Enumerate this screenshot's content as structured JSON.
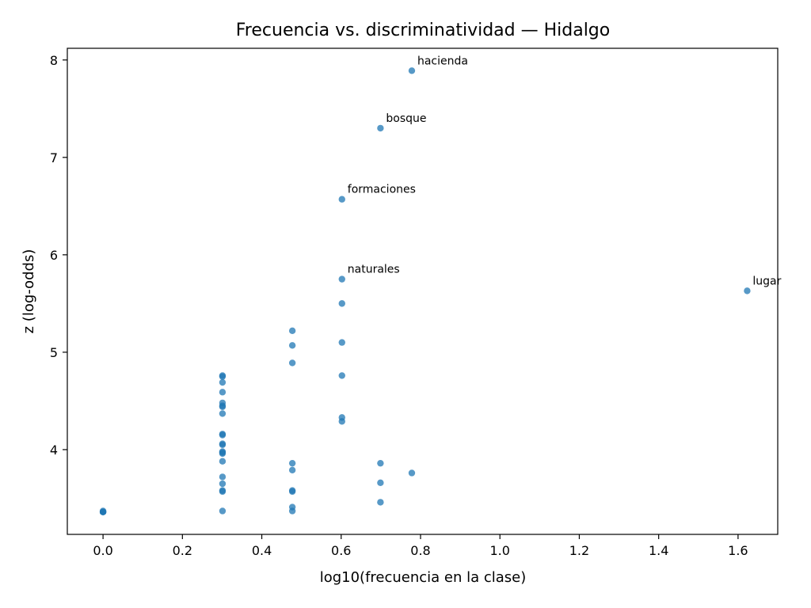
{
  "chart_data": {
    "type": "scatter",
    "title": "Frecuencia vs. discriminatividad — Hidalgo",
    "xlabel": "log10(frecuencia en la clase)",
    "ylabel": "z (log-odds)",
    "xlim": [
      -0.09,
      1.7
    ],
    "ylim": [
      3.13,
      8.12
    ],
    "xticks": [
      0.0,
      0.2,
      0.4,
      0.6,
      0.8,
      1.0,
      1.2,
      1.4,
      1.6
    ],
    "xtick_labels": [
      "0.0",
      "0.2",
      "0.4",
      "0.6",
      "0.8",
      "1.0",
      "1.2",
      "1.4",
      "1.6"
    ],
    "yticks": [
      4,
      5,
      6,
      7,
      8
    ],
    "ytick_labels": [
      "4",
      "5",
      "6",
      "7",
      "8"
    ],
    "grid": false,
    "marker_color": "#1f77b4",
    "points": [
      {
        "x": 0.0,
        "y": 3.36
      },
      {
        "x": 0.0,
        "y": 3.36
      },
      {
        "x": 0.0,
        "y": 3.36
      },
      {
        "x": 0.0,
        "y": 3.37
      },
      {
        "x": 0.301,
        "y": 4.76
      },
      {
        "x": 0.301,
        "y": 4.75
      },
      {
        "x": 0.301,
        "y": 4.69
      },
      {
        "x": 0.301,
        "y": 4.59
      },
      {
        "x": 0.301,
        "y": 4.48
      },
      {
        "x": 0.301,
        "y": 4.45
      },
      {
        "x": 0.301,
        "y": 4.44
      },
      {
        "x": 0.301,
        "y": 4.37
      },
      {
        "x": 0.301,
        "y": 4.16
      },
      {
        "x": 0.301,
        "y": 4.15
      },
      {
        "x": 0.301,
        "y": 4.06
      },
      {
        "x": 0.301,
        "y": 4.05
      },
      {
        "x": 0.301,
        "y": 3.98
      },
      {
        "x": 0.301,
        "y": 3.97
      },
      {
        "x": 0.301,
        "y": 3.96
      },
      {
        "x": 0.301,
        "y": 3.88
      },
      {
        "x": 0.301,
        "y": 3.72
      },
      {
        "x": 0.301,
        "y": 3.65
      },
      {
        "x": 0.301,
        "y": 3.58
      },
      {
        "x": 0.301,
        "y": 3.57
      },
      {
        "x": 0.301,
        "y": 3.37
      },
      {
        "x": 0.477,
        "y": 5.22
      },
      {
        "x": 0.477,
        "y": 5.07
      },
      {
        "x": 0.477,
        "y": 4.89
      },
      {
        "x": 0.477,
        "y": 3.86
      },
      {
        "x": 0.477,
        "y": 3.79
      },
      {
        "x": 0.477,
        "y": 3.58
      },
      {
        "x": 0.477,
        "y": 3.57
      },
      {
        "x": 0.477,
        "y": 3.41
      },
      {
        "x": 0.477,
        "y": 3.37
      },
      {
        "x": 0.602,
        "y": 6.57
      },
      {
        "x": 0.602,
        "y": 5.75
      },
      {
        "x": 0.602,
        "y": 5.5
      },
      {
        "x": 0.602,
        "y": 5.1
      },
      {
        "x": 0.602,
        "y": 4.76
      },
      {
        "x": 0.602,
        "y": 4.33
      },
      {
        "x": 0.602,
        "y": 4.29
      },
      {
        "x": 0.699,
        "y": 7.3
      },
      {
        "x": 0.699,
        "y": 3.86
      },
      {
        "x": 0.699,
        "y": 3.66
      },
      {
        "x": 0.699,
        "y": 3.46
      },
      {
        "x": 0.778,
        "y": 7.89
      },
      {
        "x": 0.778,
        "y": 3.76
      },
      {
        "x": 1.623,
        "y": 5.63
      }
    ],
    "annotations": [
      {
        "text": "hacienda",
        "x": 0.778,
        "y": 7.89
      },
      {
        "text": "bosque",
        "x": 0.699,
        "y": 7.3
      },
      {
        "text": "formaciones",
        "x": 0.602,
        "y": 6.57
      },
      {
        "text": "naturales",
        "x": 0.602,
        "y": 5.75
      },
      {
        "text": "lugar",
        "x": 1.623,
        "y": 5.63
      }
    ]
  }
}
